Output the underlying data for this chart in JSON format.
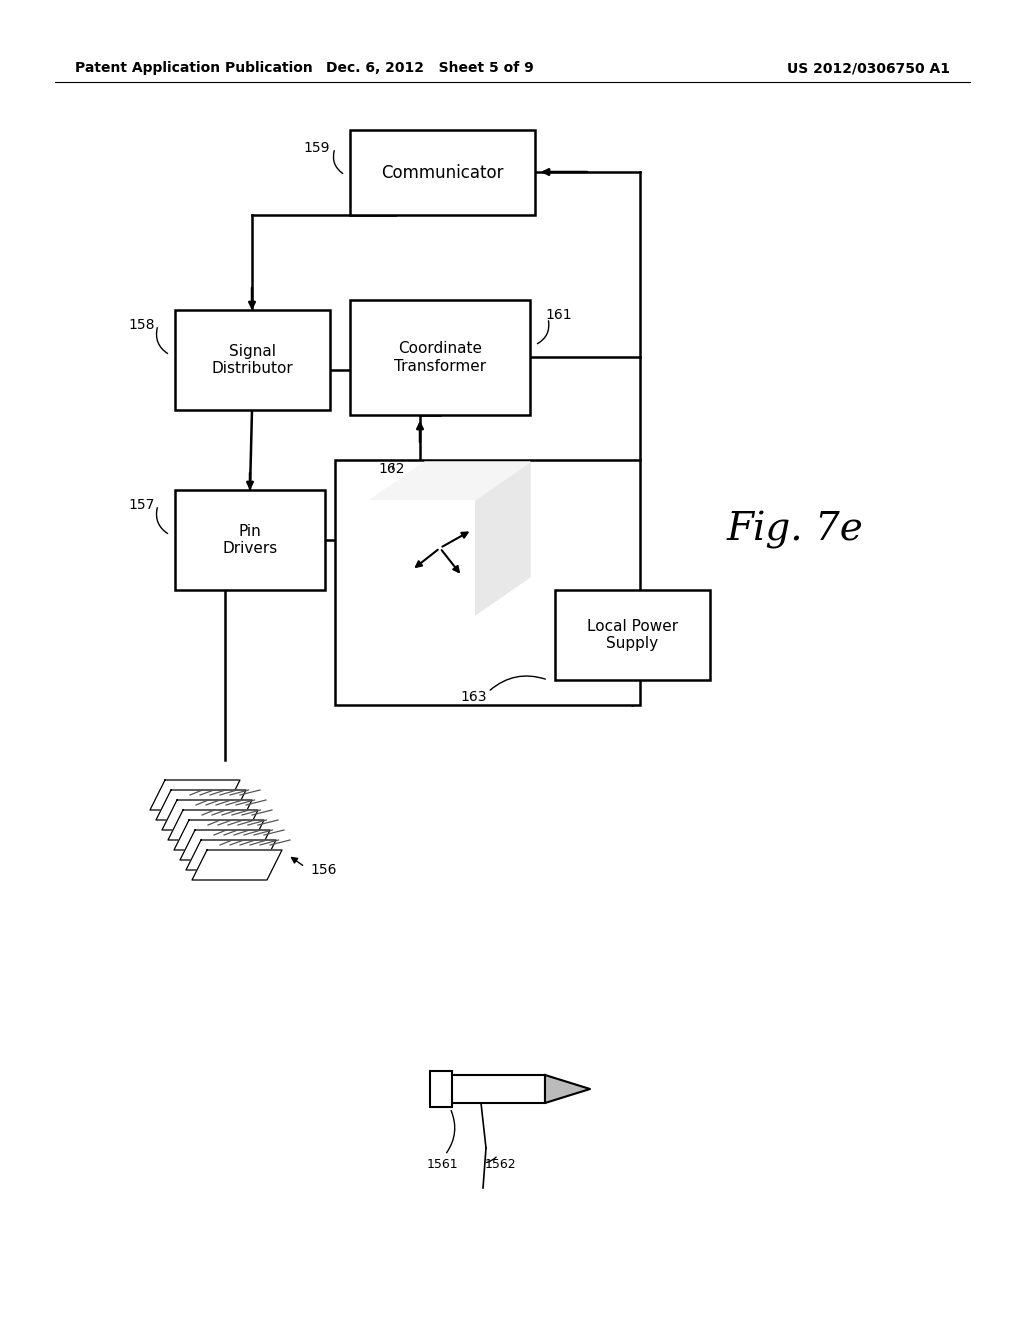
{
  "background_color": "#ffffff",
  "header_left": "Patent Application Publication",
  "header_mid": "Dec. 6, 2012   Sheet 5 of 9",
  "header_right": "US 2012/0306750 A1",
  "fig_label": "Fig. 7e",
  "line_color": "#000000",
  "text_color": "#000000",
  "font_size_header": 10,
  "font_size_label": 11,
  "font_size_ref": 10
}
